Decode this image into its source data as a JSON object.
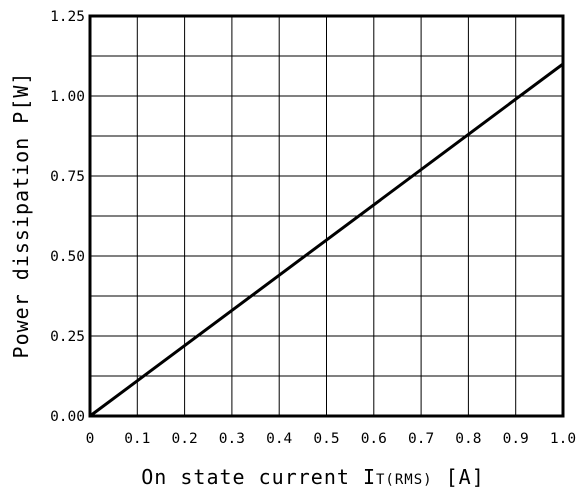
{
  "chart_data": {
    "type": "line",
    "xlabel": "On state current IT(RMS) [A]",
    "xlabel_parts": {
      "main": "On state current I",
      "sub": "T(RMS)",
      "unit": " [A]"
    },
    "ylabel": "Power dissipation P[W]",
    "xlim": [
      0,
      1.0
    ],
    "ylim": [
      0,
      1.25
    ],
    "grid": true,
    "x_ticks": [
      "0",
      "0.1",
      "0.2",
      "0.3",
      "0.4",
      "0.5",
      "0.6",
      "0.7",
      "0.8",
      "0.9",
      "1.0"
    ],
    "y_ticks": [
      "0.00",
      "0.25",
      "0.50",
      "0.75",
      "1.00",
      "1.25"
    ],
    "series": [
      {
        "x": [
          0,
          1.0
        ],
        "y": [
          0,
          1.1
        ]
      }
    ],
    "line_color": "#000000"
  }
}
